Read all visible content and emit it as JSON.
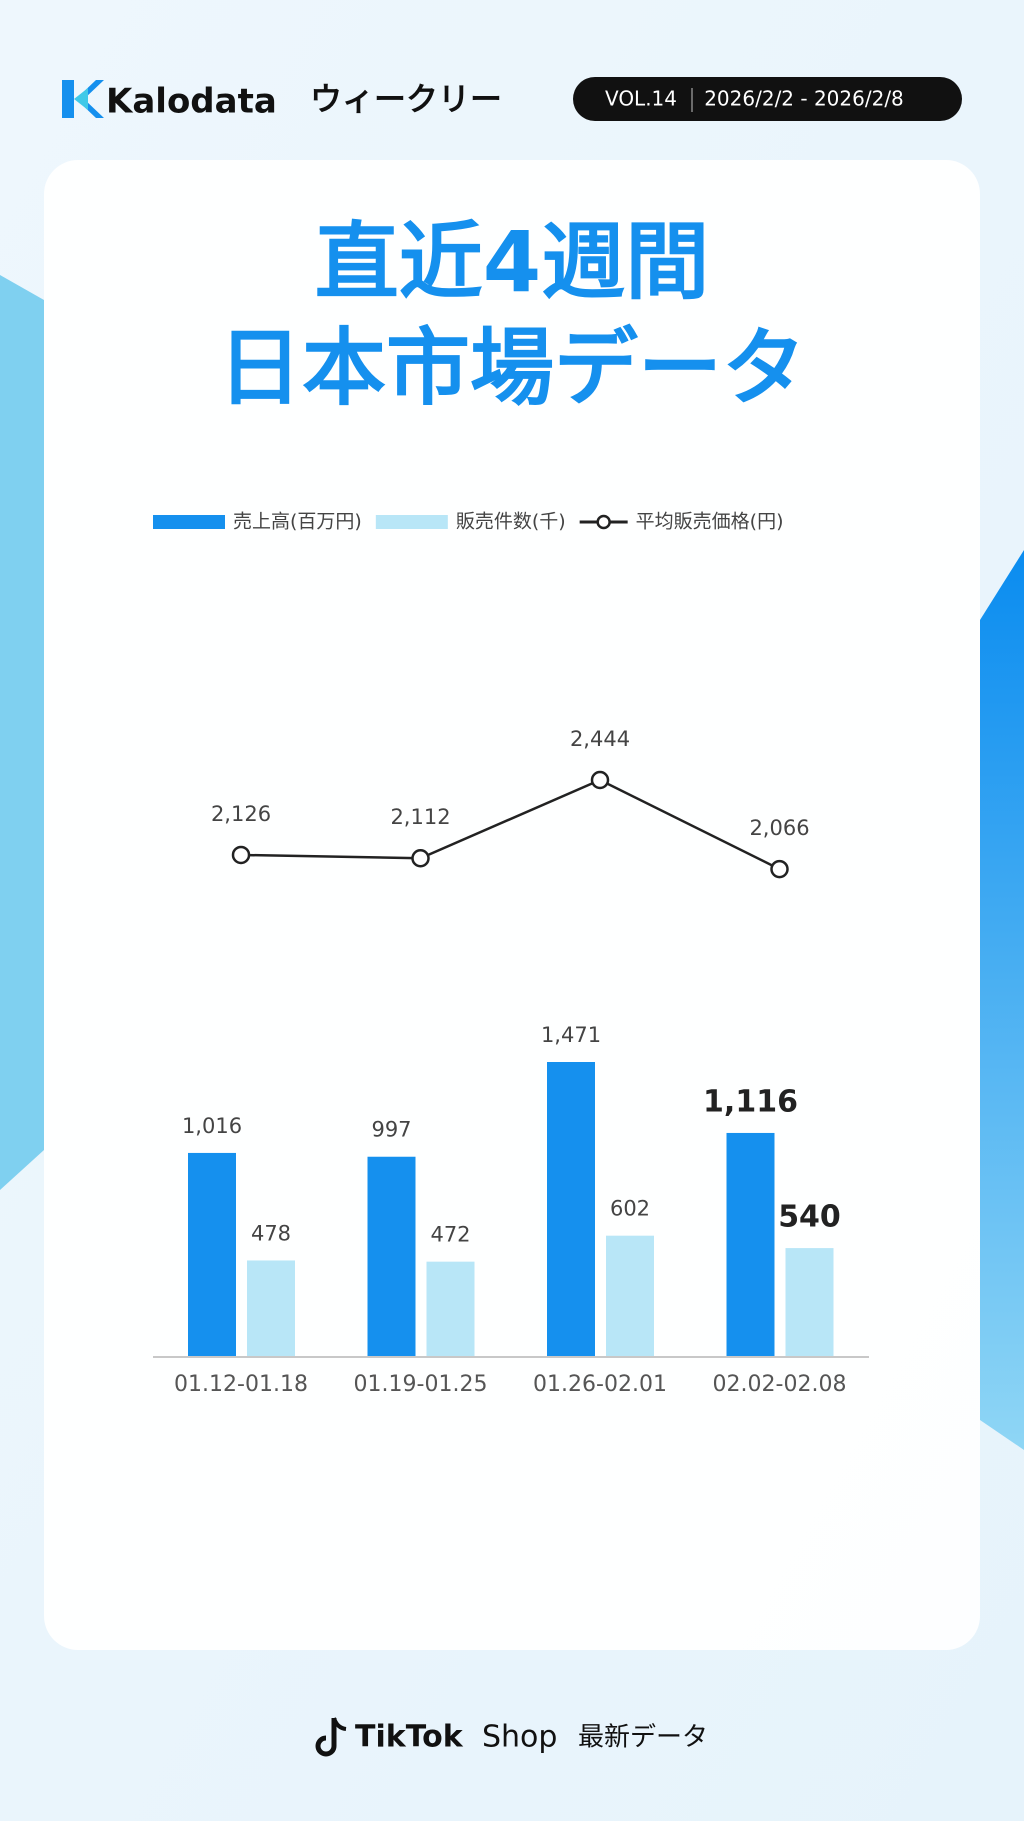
{
  "header": {
    "brand": "Kalodata",
    "subtitle": "ウィークリー",
    "volume": "VOL.14",
    "date_range": "2026/2/2 - 2026/2/8"
  },
  "chart_data": {
    "type": "bar",
    "title_lines": [
      "直近4週間",
      "日本市場データ"
    ],
    "categories": [
      "01.12-01.18",
      "01.19-01.25",
      "01.26-02.01",
      "02.02-02.08"
    ],
    "series": [
      {
        "name": "売上高(百万円)",
        "color": "#1590ee",
        "values": [
          1016,
          997,
          1471,
          1116
        ],
        "value_labels": [
          "1,016",
          "997",
          "1,471",
          "1,116"
        ]
      },
      {
        "name": "販売件数(千)",
        "color": "#b8e6f7",
        "values": [
          478,
          472,
          602,
          540
        ],
        "value_labels": [
          "478",
          "472",
          "602",
          "540"
        ]
      },
      {
        "name": "平均販売価格(円)",
        "type": "line",
        "color": "#222222",
        "values": [
          2126,
          2112,
          2444,
          2066
        ],
        "value_labels": [
          "2,126",
          "2,112",
          "2,444",
          "2,066"
        ]
      }
    ]
  },
  "footer": {
    "brand": "TikTok",
    "product": "Shop",
    "caption": "最新データ"
  }
}
